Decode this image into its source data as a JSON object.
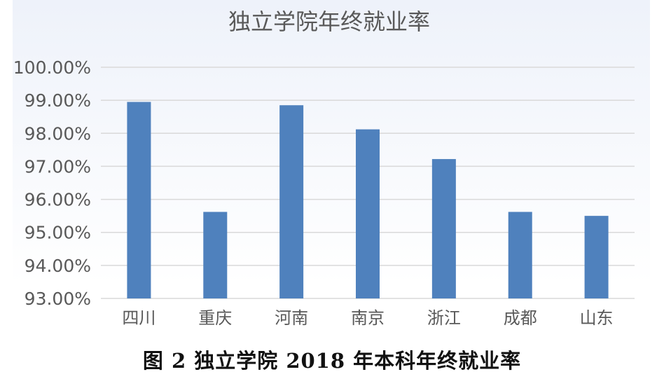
{
  "caption": "图 2  独立学院 2018 年本科年终就业率",
  "colors": {
    "bar": "#4f81bd",
    "grid": "#d9d9d9",
    "text": "#595959"
  },
  "chart_data": {
    "type": "bar",
    "title": "独立学院年终就业率",
    "categories": [
      "四川",
      "重庆",
      "河南",
      "南京",
      "浙江",
      "成都",
      "山东"
    ],
    "values": [
      98.95,
      95.62,
      98.85,
      98.12,
      97.22,
      95.62,
      95.5
    ],
    "ylim": [
      93,
      100
    ],
    "yticks": [
      "100.00%",
      "99.00%",
      "98.00%",
      "97.00%",
      "96.00%",
      "95.00%",
      "94.00%",
      "93.00%"
    ],
    "grid": true,
    "legend": "none",
    "xlabel": "",
    "ylabel": ""
  }
}
